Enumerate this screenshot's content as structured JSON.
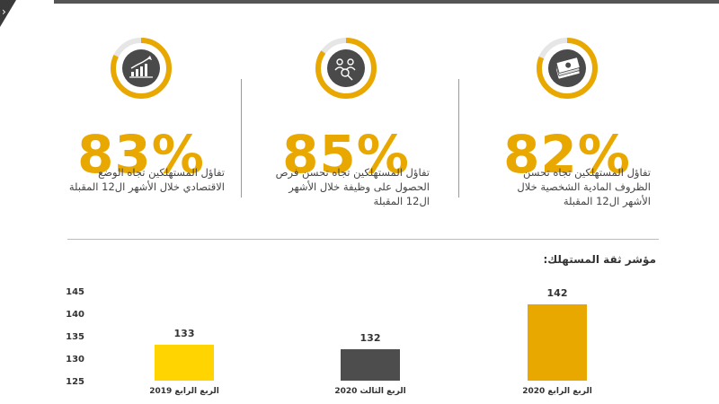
{
  "kpis": [
    {
      "value": "83%",
      "caption": "تفاؤل المستهلكين تجاه الوضع الاقتصادي خلال الأشهر ال12 المقبلة",
      "icon": "bar-growth-icon"
    },
    {
      "value": "85%",
      "caption": "تفاؤل المستهلكين تجاه تحسن فرص الحصول على وظيفة خلال الأشهر ال12 المقبلة",
      "icon": "job-search-icon"
    },
    {
      "value": "82%",
      "caption": "تفاؤل المستهلكين تجاه تحسن الظروف المادية الشخصية خلال الأشهر ال12 المقبلة",
      "icon": "money-stack-icon"
    }
  ],
  "colors": {
    "accent": "#e8a800",
    "ring_track": "#e6e6e6",
    "icon_bg": "#4a4a4a"
  },
  "chart_data": {
    "type": "bar",
    "title": "مؤشر ثقة المستهلك:",
    "categories": [
      "الربع الرابع 2019",
      "الربع الثالث 2020",
      "الربع الرابع 2020"
    ],
    "values": [
      133,
      132,
      142
    ],
    "value_labels": [
      "133",
      "132",
      "142"
    ],
    "colors": [
      "#ffd400",
      "#4d4d4d",
      "#e8a800"
    ],
    "ylim": [
      125,
      145
    ],
    "yticks": [
      125,
      130,
      135,
      140,
      145
    ],
    "grid": false,
    "legend": "none"
  }
}
